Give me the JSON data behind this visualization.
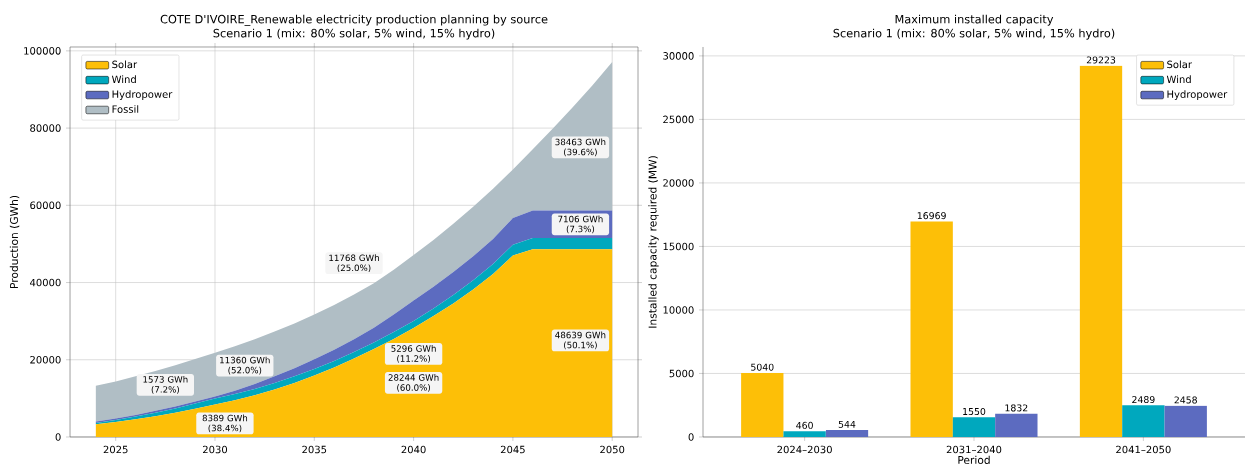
{
  "chart_data": [
    {
      "type": "area",
      "title": "COTE D'IVOIRE_Renewable electricity production planning by source",
      "subtitle": "Scenario 1 (mix: 80% solar, 5% wind, 15% hydro)",
      "ylabel": "Production (GWh)",
      "stacked": true,
      "x": [
        2024,
        2025,
        2026,
        2027,
        2028,
        2029,
        2030,
        2031,
        2032,
        2033,
        2034,
        2035,
        2036,
        2037,
        2038,
        2039,
        2040,
        2041,
        2042,
        2043,
        2044,
        2045,
        2046,
        2047,
        2048,
        2049,
        2050
      ],
      "series": [
        {
          "name": "Solar",
          "color": "#fdbf07",
          "values": [
            3300,
            3900,
            4600,
            5400,
            6300,
            7300,
            8389,
            9500,
            10800,
            12300,
            14000,
            15900,
            18000,
            20300,
            22800,
            25400,
            28244,
            31300,
            34600,
            38200,
            42200,
            47000,
            48639,
            48639,
            48639,
            48639,
            48639
          ]
        },
        {
          "name": "Wind",
          "color": "#00a8be",
          "values": [
            300,
            500,
            700,
            900,
            1100,
            1400,
            1573,
            1600,
            1600,
            1700,
            1700,
            1700,
            1700,
            1700,
            1700,
            1800,
            1800,
            2000,
            2200,
            2400,
            2600,
            2800,
            2900,
            2900,
            2900,
            2900,
            2900
          ]
        },
        {
          "name": "Hydropower",
          "color": "#5c6bc0",
          "values": [
            400,
            400,
            400,
            500,
            500,
            500,
            500,
            900,
            1300,
            1700,
            2100,
            2500,
            2900,
            3300,
            3800,
            4500,
            5296,
            5600,
            5900,
            6200,
            6500,
            6900,
            7106,
            7106,
            7106,
            7106,
            7106
          ]
        },
        {
          "name": "Fossil",
          "color": "#b0bec5",
          "values": [
            9300,
            9600,
            10000,
            10300,
            10700,
            11000,
            11360,
            11500,
            11600,
            11600,
            11600,
            11600,
            11600,
            11600,
            11500,
            11600,
            11768,
            12100,
            12500,
            12800,
            13000,
            12600,
            15900,
            21200,
            26700,
            32400,
            38463
          ]
        }
      ],
      "xlim": [
        2022.7,
        2051.3
      ],
      "ylim": [
        0,
        101000
      ],
      "xticks": [
        2025,
        2030,
        2035,
        2040,
        2045,
        2050
      ],
      "yticks": [
        0,
        20000,
        40000,
        60000,
        80000,
        100000
      ],
      "grid": true,
      "legend": "top left",
      "annotations": [
        "8389 GWh (38.4%)",
        "1573 GWh (7.2%)",
        "11360 GWh (52.0%)",
        "28244 GWh (60.0%)",
        "5296 GWh (11.2%)",
        "11768 GWh (25.0%)",
        "48639 GWh (50.1%)",
        "7106 GWh (7.3%)",
        "38463 GWh (39.6%)"
      ]
    },
    {
      "type": "bar",
      "title": "Maximum installed capacity",
      "subtitle": "Scenario 1 (mix: 80% solar, 5% wind, 15% hydro)",
      "xlabel": "Period",
      "ylabel": "Installed capacity required (MW)",
      "categories": [
        "2024–2030",
        "2031–2040",
        "2041–2050"
      ],
      "series": [
        {
          "name": "Solar",
          "color": "#fdbf07",
          "values": [
            5040,
            16969,
            29223
          ]
        },
        {
          "name": "Wind",
          "color": "#00a8be",
          "values": [
            460,
            1550,
            2489
          ]
        },
        {
          "name": "Hydropower",
          "color": "#5c6bc0",
          "values": [
            544,
            1832,
            2458
          ]
        }
      ],
      "ylim": [
        0,
        30700
      ],
      "yticks": [
        0,
        5000,
        10000,
        15000,
        20000,
        25000,
        30000
      ],
      "grid": "y",
      "legend": "top right",
      "data_labels": true
    }
  ]
}
